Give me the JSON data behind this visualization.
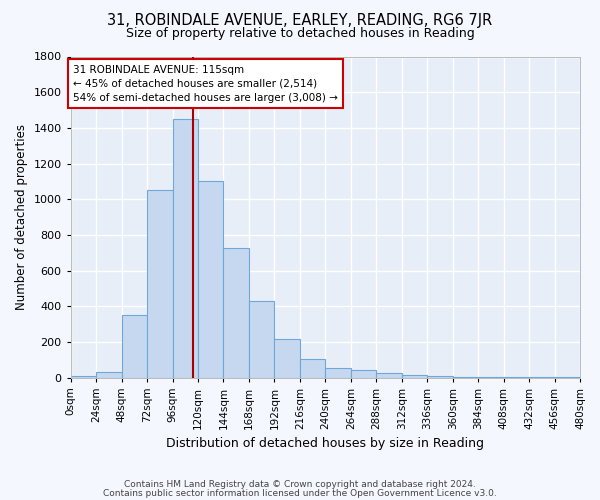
{
  "title": "31, ROBINDALE AVENUE, EARLEY, READING, RG6 7JR",
  "subtitle": "Size of property relative to detached houses in Reading",
  "xlabel": "Distribution of detached houses by size in Reading",
  "ylabel": "Number of detached properties",
  "bar_values": [
    10,
    30,
    350,
    1050,
    1450,
    1100,
    725,
    430,
    215,
    105,
    55,
    40,
    25,
    15,
    10,
    5,
    3,
    2,
    1,
    1
  ],
  "bin_labels": [
    "0sqm",
    "24sqm",
    "48sqm",
    "72sqm",
    "96sqm",
    "120sqm",
    "144sqm",
    "168sqm",
    "192sqm",
    "216sqm",
    "240sqm",
    "264sqm",
    "288sqm",
    "312sqm",
    "336sqm",
    "360sqm",
    "384sqm",
    "408sqm",
    "432sqm",
    "456sqm",
    "480sqm"
  ],
  "bin_edges": [
    0,
    24,
    48,
    72,
    96,
    120,
    144,
    168,
    192,
    216,
    240,
    264,
    288,
    312,
    336,
    360,
    384,
    408,
    432,
    456,
    480
  ],
  "bar_color": "#C5D8F0",
  "bar_edge_color": "#6FA8D6",
  "vline_x": 115,
  "vline_color": "#AA0000",
  "annotation_text": "31 ROBINDALE AVENUE: 115sqm\n← 45% of detached houses are smaller (2,514)\n54% of semi-detached houses are larger (3,008) →",
  "annotation_box_color": "#ffffff",
  "annotation_box_edge": "#CC0000",
  "ylim": [
    0,
    1800
  ],
  "xlim": [
    0,
    480
  ],
  "yticks": [
    0,
    200,
    400,
    600,
    800,
    1000,
    1200,
    1400,
    1600,
    1800
  ],
  "background_color": "#E8EEF8",
  "grid_color": "#ffffff",
  "fig_bg_color": "#F5F7FF",
  "footer_line1": "Contains HM Land Registry data © Crown copyright and database right 2024.",
  "footer_line2": "Contains public sector information licensed under the Open Government Licence v3.0."
}
